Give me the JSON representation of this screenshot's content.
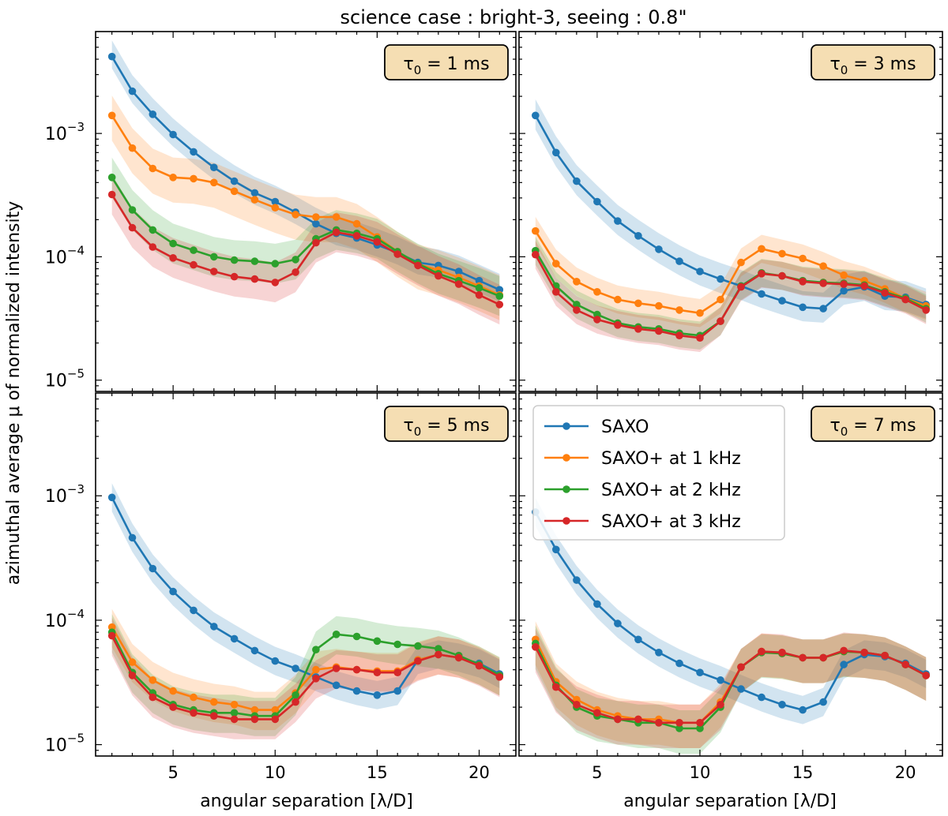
{
  "figure": {
    "suptitle": "science case : bright-3, seeing : 0.8\"",
    "ylabel": "azimuthal average μ of normalized intensity",
    "xlabel": "angular separation [λ/D]"
  },
  "chart_data": {
    "type": "line",
    "yscale": "log",
    "ylim": [
      8.1e-06,
      0.0067
    ],
    "xlim": [
      1.2,
      21.8
    ],
    "x": [
      2,
      3,
      4,
      5,
      6,
      7,
      8,
      9,
      10,
      11,
      12,
      13,
      14,
      15,
      16,
      17,
      18,
      19,
      20,
      21
    ],
    "xticks": [
      5,
      10,
      15,
      20
    ],
    "yticks": [
      {
        "value": 1e-05,
        "base": "10",
        "exp": "−5"
      },
      {
        "value": 0.0001,
        "base": "10",
        "exp": "−4"
      },
      {
        "value": 0.001,
        "base": "10",
        "exp": "−3"
      }
    ],
    "legend": {
      "placement": "upper-left of bottom-right panel",
      "entries": [
        "SAXO",
        "SAXO+ at 1 kHz",
        "SAXO+ at 2 kHz",
        "SAXO+ at 3 kHz"
      ]
    },
    "series_colors": [
      "#1f77b4",
      "#ff7f0e",
      "#2ca02c",
      "#d62728"
    ],
    "panels": [
      {
        "label": "τ0 = 1 ms",
        "label_base": "τ",
        "label_sub": "0",
        "label_rest": " = 1 ms",
        "series": [
          {
            "name": "SAXO",
            "values": [
              0.0042,
              0.0022,
              0.00143,
              0.00098,
              0.00071,
              0.00053,
              0.00041,
              0.00033,
              0.00028,
              0.00023,
              0.000185,
              0.000155,
              0.000142,
              0.000125,
              0.000108,
              9e-05,
              8.5e-05,
              7.6e-05,
              6.4e-05,
              5.4e-05
            ],
            "band": [
              1.35,
              1.25
            ]
          },
          {
            "name": "SAXO+ at 1 kHz",
            "values": [
              0.0014,
              0.00076,
              0.00052,
              0.00044,
              0.00043,
              0.0004,
              0.00034,
              0.00029,
              0.00025,
              0.00022,
              0.00021,
              0.00021,
              0.000185,
              0.000145,
              0.00011,
              8.7e-05,
              7.8e-05,
              6.8e-05,
              5.8e-05,
              4.9e-05
            ],
            "band": [
              1.45,
              1.6
            ]
          },
          {
            "name": "SAXO+ at 2 kHz",
            "values": [
              0.00044,
              0.00024,
              0.000165,
              0.000128,
              0.000113,
              0.0001,
              9.4e-05,
              9.2e-05,
              8.8e-05,
              9.5e-05,
              0.00014,
              0.000165,
              0.000155,
              0.00014,
              0.00011,
              8.8e-05,
              7.3e-05,
              6.4e-05,
              5.6e-05,
              4.8e-05
            ],
            "band": [
              1.45,
              1.45
            ]
          },
          {
            "name": "SAXO+ at 3 kHz",
            "values": [
              0.00032,
              0.000172,
              0.00012,
              9.8e-05,
              8.6e-05,
              7.6e-05,
              6.9e-05,
              6.6e-05,
              6.2e-05,
              7.5e-05,
              0.00013,
              0.000158,
              0.000148,
              0.000132,
              0.000105,
              8.5e-05,
              7e-05,
              6e-05,
              4.9e-05,
              4.1e-05
            ],
            "band": [
              1.45,
              1.45
            ]
          }
        ]
      },
      {
        "label": "τ0 = 3 ms",
        "label_base": "τ",
        "label_sub": "0",
        "label_rest": " = 3 ms",
        "series": [
          {
            "name": "SAXO",
            "values": [
              0.0014,
              0.0007,
              0.00041,
              0.00028,
              0.000195,
              0.000148,
              0.000115,
              9.2e-05,
              7.6e-05,
              6.6e-05,
              5.8e-05,
              5e-05,
              4.4e-05,
              3.9e-05,
              3.8e-05,
              5.3e-05,
              5.7e-05,
              4.8e-05,
              4.7e-05,
              4.1e-05
            ],
            "band": [
              1.35,
              1.3
            ]
          },
          {
            "name": "SAXO+ at 1 kHz",
            "values": [
              0.000162,
              8.8e-05,
              6.3e-05,
              5.2e-05,
              4.5e-05,
              4.2e-05,
              4e-05,
              3.7e-05,
              3.5e-05,
              4.5e-05,
              9e-05,
              0.000116,
              0.000106,
              9.7e-05,
              8.4e-05,
              7.1e-05,
              6.4e-05,
              5.5e-05,
              4.6e-05,
              4e-05
            ],
            "band": [
              1.3,
              1.3
            ]
          },
          {
            "name": "SAXO+ at 2 kHz",
            "values": [
              0.000112,
              5.8e-05,
              4.1e-05,
              3.4e-05,
              2.9e-05,
              2.7e-05,
              2.6e-05,
              2.4e-05,
              2.3e-05,
              3e-05,
              5.8e-05,
              7.4e-05,
              7e-05,
              6.4e-05,
              6.2e-05,
              6.1e-05,
              5.9e-05,
              5.2e-05,
              4.6e-05,
              3.8e-05
            ],
            "band": [
              1.3,
              1.3
            ]
          },
          {
            "name": "SAXO+ at 3 kHz",
            "values": [
              0.000104,
              5.2e-05,
              3.7e-05,
              3.1e-05,
              2.8e-05,
              2.6e-05,
              2.5e-05,
              2.3e-05,
              2.2e-05,
              3e-05,
              5.7e-05,
              7.3e-05,
              7e-05,
              6.3e-05,
              6.1e-05,
              6e-05,
              5.8e-05,
              5.1e-05,
              4.5e-05,
              3.7e-05
            ],
            "band": [
              1.3,
              1.3
            ]
          }
        ]
      },
      {
        "label": "τ0 = 5 ms",
        "label_base": "τ",
        "label_sub": "0",
        "label_rest": " = 5 ms",
        "series": [
          {
            "name": "SAXO",
            "values": [
              0.00097,
              0.00046,
              0.00026,
              0.00017,
              0.00012,
              8.9e-05,
              7.1e-05,
              5.7e-05,
              4.7e-05,
              4.1e-05,
              3.5e-05,
              3e-05,
              2.7e-05,
              2.5e-05,
              2.7e-05,
              4.8e-05,
              5.3e-05,
              5e-05,
              4.5e-05,
              3.7e-05
            ],
            "band": [
              1.3,
              1.3
            ]
          },
          {
            "name": "SAXO+ at 1 kHz",
            "values": [
              8.8e-05,
              4.6e-05,
              3.3e-05,
              2.7e-05,
              2.4e-05,
              2.2e-05,
              2.1e-05,
              1.9e-05,
              1.9e-05,
              2.6e-05,
              4e-05,
              4.2e-05,
              4e-05,
              3.9e-05,
              3.9e-05,
              4.8e-05,
              5.3e-05,
              5e-05,
              4.4e-05,
              3.6e-05
            ],
            "band": [
              1.4,
              1.45
            ]
          },
          {
            "name": "SAXO+ at 2 kHz",
            "values": [
              8e-05,
              3.8e-05,
              2.6e-05,
              2.1e-05,
              1.9e-05,
              1.8e-05,
              1.8e-05,
              1.7e-05,
              1.7e-05,
              2.5e-05,
              5.8e-05,
              7.7e-05,
              7.4e-05,
              6.8e-05,
              6.4e-05,
              6.2e-05,
              5.9e-05,
              5.2e-05,
              4.4e-05,
              3.6e-05
            ],
            "band": [
              1.4,
              1.45
            ]
          },
          {
            "name": "SAXO+ at 3 kHz",
            "values": [
              7.5e-05,
              3.6e-05,
              2.4e-05,
              2e-05,
              1.8e-05,
              1.7e-05,
              1.6e-05,
              1.6e-05,
              1.6e-05,
              2.2e-05,
              3.4e-05,
              4.1e-05,
              4e-05,
              3.8e-05,
              3.8e-05,
              4.7e-05,
              5.3e-05,
              5e-05,
              4.3e-05,
              3.5e-05
            ],
            "band": [
              1.4,
              1.45
            ]
          }
        ]
      },
      {
        "label": "τ0 = 7 ms",
        "label_base": "τ",
        "label_sub": "0",
        "label_rest": " = 7 ms",
        "series": [
          {
            "name": "SAXO",
            "values": [
              0.00074,
              0.00037,
              0.00021,
              0.000135,
              9.4e-05,
              7e-05,
              5.5e-05,
              4.5e-05,
              3.8e-05,
              3.3e-05,
              2.8e-05,
              2.4e-05,
              2.1e-05,
              1.9e-05,
              2.2e-05,
              4.4e-05,
              5.3e-05,
              5.1e-05,
              4.5e-05,
              3.7e-05
            ],
            "band": [
              1.3,
              1.3
            ]
          },
          {
            "name": "SAXO+ at 1 kHz",
            "values": [
              7e-05,
              3.2e-05,
              2.3e-05,
              1.9e-05,
              1.7e-05,
              1.6e-05,
              1.6e-05,
              1.5e-05,
              1.5e-05,
              2.2e-05,
              4.2e-05,
              5.6e-05,
              5.4e-05,
              5e-05,
              5e-05,
              5.6e-05,
              5.5e-05,
              5.2e-05,
              4.4e-05,
              3.6e-05
            ],
            "band": [
              1.4,
              1.6
            ]
          },
          {
            "name": "SAXO+ at 2 kHz",
            "values": [
              6.5e-05,
              3e-05,
              2e-05,
              1.7e-05,
              1.6e-05,
              1.5e-05,
              1.5e-05,
              1.35e-05,
              1.35e-05,
              2e-05,
              4.2e-05,
              5.5e-05,
              5.4e-05,
              5e-05,
              5e-05,
              5.6e-05,
              5.5e-05,
              5.2e-05,
              4.4e-05,
              3.6e-05
            ],
            "band": [
              1.4,
              1.6
            ]
          },
          {
            "name": "SAXO+ at 3 kHz",
            "values": [
              6.1e-05,
              2.9e-05,
              2.1e-05,
              1.8e-05,
              1.6e-05,
              1.6e-05,
              1.5e-05,
              1.5e-05,
              1.5e-05,
              2.1e-05,
              4.2e-05,
              5.6e-05,
              5.5e-05,
              5e-05,
              5e-05,
              5.7e-05,
              5.5e-05,
              5.2e-05,
              4.4e-05,
              3.6e-05
            ],
            "band": [
              1.4,
              1.6
            ]
          }
        ]
      }
    ]
  }
}
